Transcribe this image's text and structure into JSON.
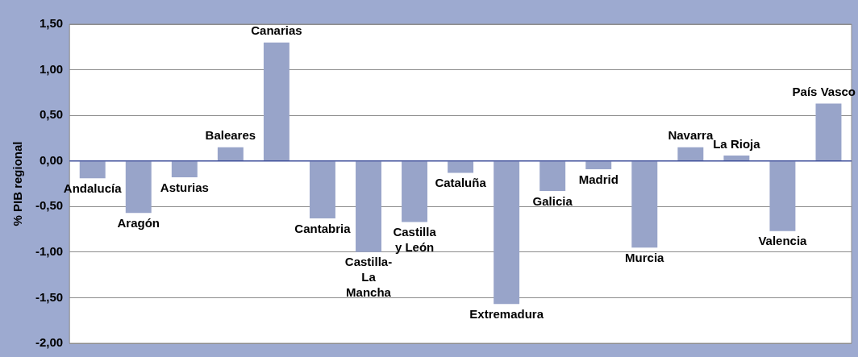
{
  "chart_data": {
    "type": "bar",
    "ylabel": "% PIB regional",
    "categories": [
      "Andalucía",
      "Aragón",
      "Asturias",
      "Baleares",
      "Canarias",
      "Cantabria",
      "Castilla-La Mancha",
      "Castilla y León",
      "Cataluña",
      "Extremadura",
      "Galicia",
      "Madrid",
      "Murcia",
      "Navarra",
      "La Rioja",
      "Valencia",
      "País Vasco"
    ],
    "values": [
      -0.19,
      -0.57,
      -0.18,
      0.15,
      1.3,
      -0.63,
      -1.0,
      -0.67,
      -0.13,
      -1.57,
      -0.33,
      -0.09,
      -0.95,
      0.15,
      0.06,
      -0.77,
      0.63
    ],
    "color": "#98a4c9",
    "ylim": [
      -2,
      1.5
    ],
    "yticks": [
      {
        "value": -2,
        "label": "-2,00"
      },
      {
        "value": -1.5,
        "label": "-1,50"
      },
      {
        "value": -1,
        "label": "-1,00"
      },
      {
        "value": -0.5,
        "label": "-0,50"
      },
      {
        "value": 0,
        "label": "0,00"
      },
      {
        "value": 0.5,
        "label": "0,50"
      },
      {
        "value": 1,
        "label": "1,00"
      },
      {
        "value": 1.5,
        "label": "1,50"
      }
    ],
    "tick_labels": "y",
    "grid": "y"
  }
}
